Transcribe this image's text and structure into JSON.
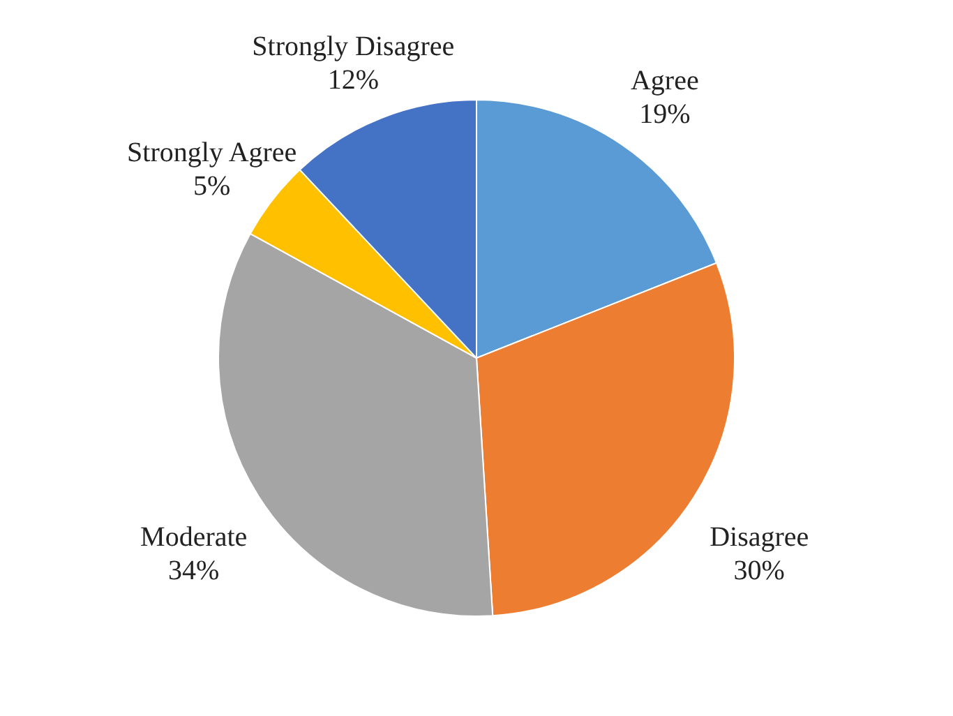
{
  "chart_data": {
    "type": "pie",
    "categories": [
      "Agree",
      "Disagree",
      "Moderate",
      "Strongly Agree",
      "Strongly Disagree"
    ],
    "values": [
      19,
      30,
      34,
      5,
      12
    ],
    "value_labels": [
      "19%",
      "30%",
      "34%",
      "5%",
      "12%"
    ],
    "colors": [
      "#5b9bd5",
      "#ed7d31",
      "#a5a5a5",
      "#ffc000",
      "#4472c4"
    ]
  }
}
